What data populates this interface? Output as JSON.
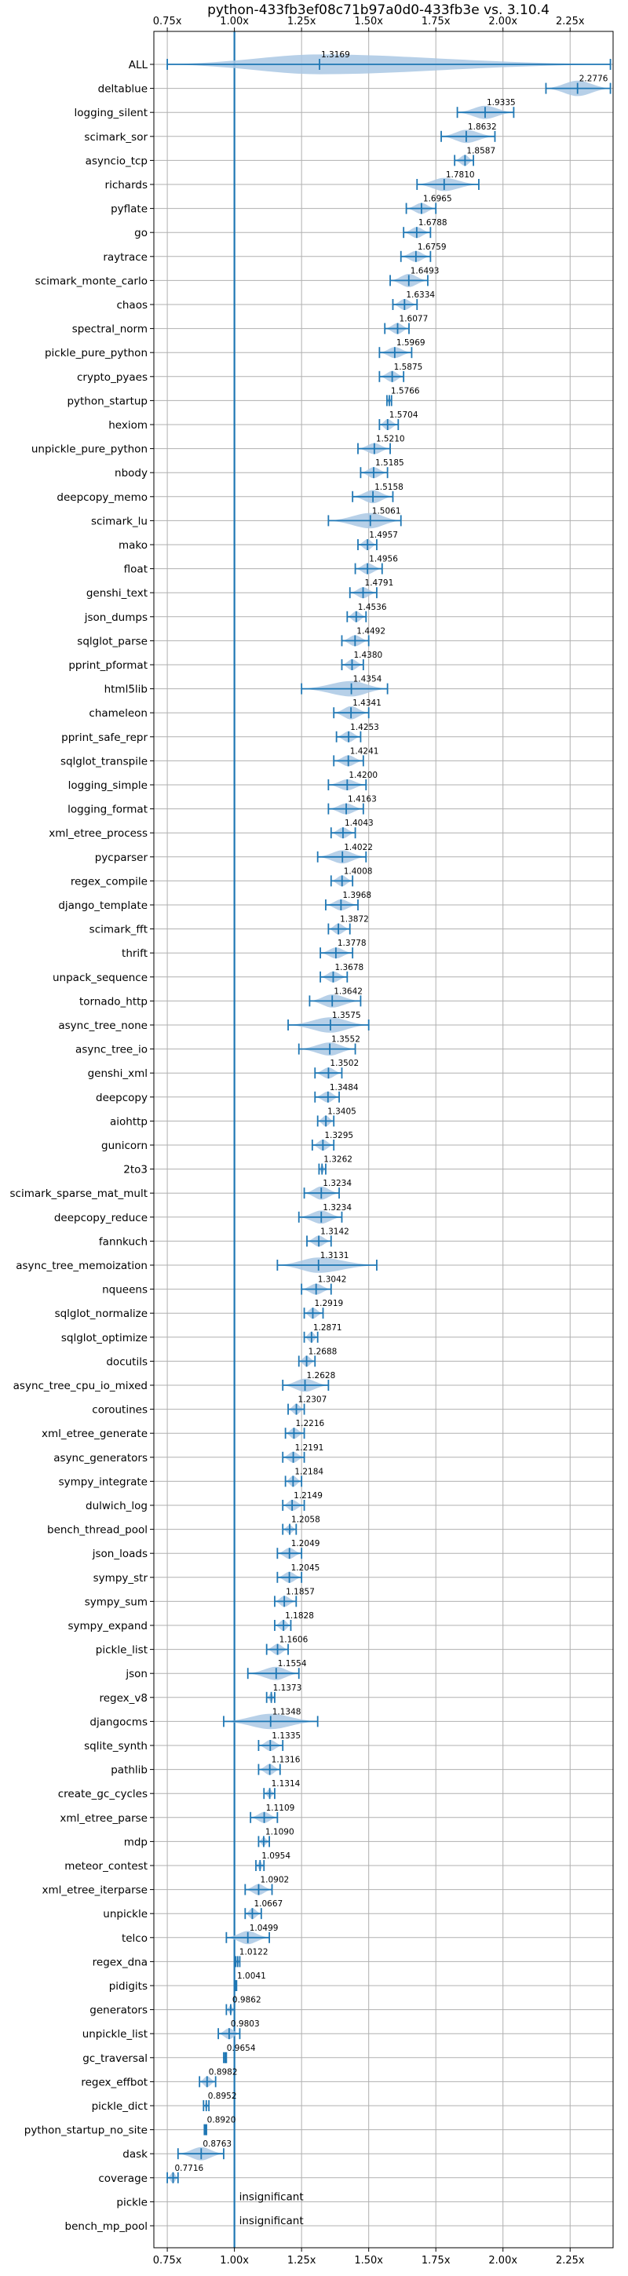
{
  "chart_data": {
    "type": "violin",
    "title": "python-433fb3ef08c71b97a0d0-433fb3e vs. 3.10.4",
    "xlabel": "",
    "ylabel": "",
    "xlim": [
      0.7,
      2.41
    ],
    "xticks": [
      0.75,
      1.0,
      1.25,
      1.5,
      1.75,
      2.0,
      2.25
    ],
    "xtick_labels": [
      "0.75x",
      "1.00x",
      "1.25x",
      "1.50x",
      "1.75x",
      "2.00x",
      "2.25x"
    ],
    "reference_line": 1.0,
    "grid": true,
    "colors": {
      "accent": "#1f77b4",
      "violin": "#aac8e4",
      "grid": "#b0b0b0"
    },
    "insignificant_label": "insignificant",
    "benchmarks": [
      {
        "name": "ALL",
        "value": 1.3169,
        "label": "1.3169",
        "min": 0.75,
        "max": 2.4,
        "width": 0.9
      },
      {
        "name": "deltablue",
        "value": 2.2776,
        "label": "2.2776",
        "min": 2.16,
        "max": 2.4,
        "width": 0.7
      },
      {
        "name": "logging_silent",
        "value": 1.9335,
        "label": "1.9335",
        "min": 1.83,
        "max": 2.04,
        "width": 0.6
      },
      {
        "name": "scimark_sor",
        "value": 1.8632,
        "label": "1.8632",
        "min": 1.77,
        "max": 1.97,
        "width": 0.6
      },
      {
        "name": "asyncio_tcp",
        "value": 1.8587,
        "label": "1.8587",
        "min": 1.82,
        "max": 1.89,
        "width": 0.5
      },
      {
        "name": "richards",
        "value": 1.781,
        "label": "1.7810",
        "min": 1.68,
        "max": 1.91,
        "width": 0.6
      },
      {
        "name": "pyflate",
        "value": 1.6965,
        "label": "1.6965",
        "min": 1.64,
        "max": 1.75,
        "width": 0.5
      },
      {
        "name": "go",
        "value": 1.6788,
        "label": "1.6788",
        "min": 1.63,
        "max": 1.73,
        "width": 0.5
      },
      {
        "name": "raytrace",
        "value": 1.6759,
        "label": "1.6759",
        "min": 1.62,
        "max": 1.73,
        "width": 0.5
      },
      {
        "name": "scimark_monte_carlo",
        "value": 1.6493,
        "label": "1.6493",
        "min": 1.58,
        "max": 1.72,
        "width": 0.6
      },
      {
        "name": "chaos",
        "value": 1.6334,
        "label": "1.6334",
        "min": 1.59,
        "max": 1.68,
        "width": 0.5
      },
      {
        "name": "spectral_norm",
        "value": 1.6077,
        "label": "1.6077",
        "min": 1.56,
        "max": 1.65,
        "width": 0.5
      },
      {
        "name": "pickle_pure_python",
        "value": 1.5969,
        "label": "1.5969",
        "min": 1.54,
        "max": 1.66,
        "width": 0.5
      },
      {
        "name": "crypto_pyaes",
        "value": 1.5875,
        "label": "1.5875",
        "min": 1.54,
        "max": 1.63,
        "width": 0.5
      },
      {
        "name": "python_startup",
        "value": 1.5766,
        "label": "1.5766",
        "min": 1.568,
        "max": 1.585,
        "width": 0.4
      },
      {
        "name": "hexiom",
        "value": 1.5704,
        "label": "1.5704",
        "min": 1.54,
        "max": 1.61,
        "width": 0.5
      },
      {
        "name": "unpickle_pure_python",
        "value": 1.521,
        "label": "1.5210",
        "min": 1.46,
        "max": 1.58,
        "width": 0.5
      },
      {
        "name": "nbody",
        "value": 1.5185,
        "label": "1.5185",
        "min": 1.47,
        "max": 1.57,
        "width": 0.5
      },
      {
        "name": "deepcopy_memo",
        "value": 1.5158,
        "label": "1.5158",
        "min": 1.44,
        "max": 1.59,
        "width": 0.6
      },
      {
        "name": "scimark_lu",
        "value": 1.5061,
        "label": "1.5061",
        "min": 1.35,
        "max": 1.62,
        "width": 0.7
      },
      {
        "name": "mako",
        "value": 1.4957,
        "label": "1.4957",
        "min": 1.46,
        "max": 1.53,
        "width": 0.5
      },
      {
        "name": "float",
        "value": 1.4956,
        "label": "1.4956",
        "min": 1.45,
        "max": 1.55,
        "width": 0.5
      },
      {
        "name": "genshi_text",
        "value": 1.4791,
        "label": "1.4791",
        "min": 1.43,
        "max": 1.53,
        "width": 0.5
      },
      {
        "name": "json_dumps",
        "value": 1.4536,
        "label": "1.4536",
        "min": 1.42,
        "max": 1.49,
        "width": 0.5
      },
      {
        "name": "sqlglot_parse",
        "value": 1.4492,
        "label": "1.4492",
        "min": 1.4,
        "max": 1.5,
        "width": 0.5
      },
      {
        "name": "pprint_pformat",
        "value": 1.438,
        "label": "1.4380",
        "min": 1.4,
        "max": 1.48,
        "width": 0.5
      },
      {
        "name": "html5lib",
        "value": 1.4354,
        "label": "1.4354",
        "min": 1.25,
        "max": 1.57,
        "width": 0.7
      },
      {
        "name": "chameleon",
        "value": 1.4341,
        "label": "1.4341",
        "min": 1.37,
        "max": 1.5,
        "width": 0.6
      },
      {
        "name": "pprint_safe_repr",
        "value": 1.4253,
        "label": "1.4253",
        "min": 1.38,
        "max": 1.47,
        "width": 0.5
      },
      {
        "name": "sqlglot_transpile",
        "value": 1.4241,
        "label": "1.4241",
        "min": 1.37,
        "max": 1.48,
        "width": 0.5
      },
      {
        "name": "logging_simple",
        "value": 1.42,
        "label": "1.4200",
        "min": 1.35,
        "max": 1.49,
        "width": 0.5
      },
      {
        "name": "logging_format",
        "value": 1.4163,
        "label": "1.4163",
        "min": 1.35,
        "max": 1.48,
        "width": 0.5
      },
      {
        "name": "xml_etree_process",
        "value": 1.4043,
        "label": "1.4043",
        "min": 1.36,
        "max": 1.45,
        "width": 0.5
      },
      {
        "name": "pycparser",
        "value": 1.4022,
        "label": "1.4022",
        "min": 1.31,
        "max": 1.49,
        "width": 0.6
      },
      {
        "name": "regex_compile",
        "value": 1.4008,
        "label": "1.4008",
        "min": 1.36,
        "max": 1.44,
        "width": 0.5
      },
      {
        "name": "django_template",
        "value": 1.3968,
        "label": "1.3968",
        "min": 1.34,
        "max": 1.46,
        "width": 0.5
      },
      {
        "name": "scimark_fft",
        "value": 1.3872,
        "label": "1.3872",
        "min": 1.35,
        "max": 1.43,
        "width": 0.5
      },
      {
        "name": "thrift",
        "value": 1.3778,
        "label": "1.3778",
        "min": 1.32,
        "max": 1.44,
        "width": 0.5
      },
      {
        "name": "unpack_sequence",
        "value": 1.3678,
        "label": "1.3678",
        "min": 1.32,
        "max": 1.42,
        "width": 0.5
      },
      {
        "name": "tornado_http",
        "value": 1.3642,
        "label": "1.3642",
        "min": 1.28,
        "max": 1.47,
        "width": 0.6
      },
      {
        "name": "async_tree_none",
        "value": 1.3575,
        "label": "1.3575",
        "min": 1.2,
        "max": 1.5,
        "width": 0.7
      },
      {
        "name": "async_tree_io",
        "value": 1.3552,
        "label": "1.3552",
        "min": 1.24,
        "max": 1.45,
        "width": 0.6
      },
      {
        "name": "genshi_xml",
        "value": 1.3502,
        "label": "1.3502",
        "min": 1.3,
        "max": 1.4,
        "width": 0.5
      },
      {
        "name": "deepcopy",
        "value": 1.3484,
        "label": "1.3484",
        "min": 1.3,
        "max": 1.39,
        "width": 0.5
      },
      {
        "name": "aiohttp",
        "value": 1.3405,
        "label": "1.3405",
        "min": 1.31,
        "max": 1.37,
        "width": 0.5
      },
      {
        "name": "gunicorn",
        "value": 1.3295,
        "label": "1.3295",
        "min": 1.29,
        "max": 1.37,
        "width": 0.5
      },
      {
        "name": "2to3",
        "value": 1.3262,
        "label": "1.3262",
        "min": 1.315,
        "max": 1.34,
        "width": 0.4
      },
      {
        "name": "scimark_sparse_mat_mult",
        "value": 1.3234,
        "label": "1.3234",
        "min": 1.26,
        "max": 1.39,
        "width": 0.6
      },
      {
        "name": "deepcopy_reduce",
        "value": 1.3234,
        "label": "1.3234",
        "min": 1.24,
        "max": 1.4,
        "width": 0.6
      },
      {
        "name": "fannkuch",
        "value": 1.3142,
        "label": "1.3142",
        "min": 1.27,
        "max": 1.36,
        "width": 0.5
      },
      {
        "name": "async_tree_memoization",
        "value": 1.3131,
        "label": "1.3131",
        "min": 1.16,
        "max": 1.53,
        "width": 0.7
      },
      {
        "name": "nqueens",
        "value": 1.3042,
        "label": "1.3042",
        "min": 1.25,
        "max": 1.36,
        "width": 0.5
      },
      {
        "name": "sqlglot_normalize",
        "value": 1.2919,
        "label": "1.2919",
        "min": 1.26,
        "max": 1.33,
        "width": 0.5
      },
      {
        "name": "sqlglot_optimize",
        "value": 1.2871,
        "label": "1.2871",
        "min": 1.26,
        "max": 1.31,
        "width": 0.5
      },
      {
        "name": "docutils",
        "value": 1.2688,
        "label": "1.2688",
        "min": 1.24,
        "max": 1.3,
        "width": 0.5
      },
      {
        "name": "async_tree_cpu_io_mixed",
        "value": 1.2628,
        "label": "1.2628",
        "min": 1.18,
        "max": 1.35,
        "width": 0.6
      },
      {
        "name": "coroutines",
        "value": 1.2307,
        "label": "1.2307",
        "min": 1.2,
        "max": 1.26,
        "width": 0.5
      },
      {
        "name": "xml_etree_generate",
        "value": 1.2216,
        "label": "1.2216",
        "min": 1.19,
        "max": 1.26,
        "width": 0.5
      },
      {
        "name": "async_generators",
        "value": 1.2191,
        "label": "1.2191",
        "min": 1.18,
        "max": 1.26,
        "width": 0.5
      },
      {
        "name": "sympy_integrate",
        "value": 1.2184,
        "label": "1.2184",
        "min": 1.19,
        "max": 1.25,
        "width": 0.5
      },
      {
        "name": "dulwich_log",
        "value": 1.2149,
        "label": "1.2149",
        "min": 1.18,
        "max": 1.26,
        "width": 0.5
      },
      {
        "name": "bench_thread_pool",
        "value": 1.2058,
        "label": "1.2058",
        "min": 1.18,
        "max": 1.23,
        "width": 0.4
      },
      {
        "name": "json_loads",
        "value": 1.2049,
        "label": "1.2049",
        "min": 1.16,
        "max": 1.25,
        "width": 0.5
      },
      {
        "name": "sympy_str",
        "value": 1.2045,
        "label": "1.2045",
        "min": 1.16,
        "max": 1.25,
        "width": 0.5
      },
      {
        "name": "sympy_sum",
        "value": 1.1857,
        "label": "1.1857",
        "min": 1.15,
        "max": 1.23,
        "width": 0.5
      },
      {
        "name": "sympy_expand",
        "value": 1.1828,
        "label": "1.1828",
        "min": 1.15,
        "max": 1.21,
        "width": 0.5
      },
      {
        "name": "pickle_list",
        "value": 1.1606,
        "label": "1.1606",
        "min": 1.12,
        "max": 1.2,
        "width": 0.5
      },
      {
        "name": "json",
        "value": 1.1554,
        "label": "1.1554",
        "min": 1.05,
        "max": 1.24,
        "width": 0.6
      },
      {
        "name": "regex_v8",
        "value": 1.1373,
        "label": "1.1373",
        "min": 1.12,
        "max": 1.15,
        "width": 0.4
      },
      {
        "name": "djangocms",
        "value": 1.1348,
        "label": "1.1348",
        "min": 0.96,
        "max": 1.31,
        "width": 0.7
      },
      {
        "name": "sqlite_synth",
        "value": 1.1335,
        "label": "1.1335",
        "min": 1.09,
        "max": 1.18,
        "width": 0.5
      },
      {
        "name": "pathlib",
        "value": 1.1316,
        "label": "1.1316",
        "min": 1.09,
        "max": 1.17,
        "width": 0.5
      },
      {
        "name": "create_gc_cycles",
        "value": 1.1314,
        "label": "1.1314",
        "min": 1.11,
        "max": 1.15,
        "width": 0.4
      },
      {
        "name": "xml_etree_parse",
        "value": 1.1109,
        "label": "1.1109",
        "min": 1.06,
        "max": 1.16,
        "width": 0.5
      },
      {
        "name": "mdp",
        "value": 1.109,
        "label": "1.1090",
        "min": 1.09,
        "max": 1.13,
        "width": 0.4
      },
      {
        "name": "meteor_contest",
        "value": 1.0954,
        "label": "1.0954",
        "min": 1.08,
        "max": 1.11,
        "width": 0.4
      },
      {
        "name": "xml_etree_iterparse",
        "value": 1.0902,
        "label": "1.0902",
        "min": 1.04,
        "max": 1.14,
        "width": 0.5
      },
      {
        "name": "unpickle",
        "value": 1.0667,
        "label": "1.0667",
        "min": 1.04,
        "max": 1.1,
        "width": 0.5
      },
      {
        "name": "telco",
        "value": 1.0499,
        "label": "1.0499",
        "min": 0.97,
        "max": 1.13,
        "width": 0.6
      },
      {
        "name": "regex_dna",
        "value": 1.0122,
        "label": "1.0122",
        "min": 1.005,
        "max": 1.02,
        "width": 0.3
      },
      {
        "name": "pidigits",
        "value": 1.0041,
        "label": "1.0041",
        "min": 1.0,
        "max": 1.008,
        "width": 0.3
      },
      {
        "name": "generators",
        "value": 0.9862,
        "label": "0.9862",
        "min": 0.97,
        "max": 1.0,
        "width": 0.4
      },
      {
        "name": "unpickle_list",
        "value": 0.9803,
        "label": "0.9803",
        "min": 0.94,
        "max": 1.02,
        "width": 0.5
      },
      {
        "name": "gc_traversal",
        "value": 0.9654,
        "label": "0.9654",
        "min": 0.96,
        "max": 0.97,
        "width": 0.3
      },
      {
        "name": "regex_effbot",
        "value": 0.8982,
        "label": "0.8982",
        "min": 0.87,
        "max": 0.93,
        "width": 0.5
      },
      {
        "name": "pickle_dict",
        "value": 0.8952,
        "label": "0.8952",
        "min": 0.885,
        "max": 0.905,
        "width": 0.3
      },
      {
        "name": "python_startup_no_site",
        "value": 0.892,
        "label": "0.8920",
        "min": 0.888,
        "max": 0.896,
        "width": 0.2
      },
      {
        "name": "dask",
        "value": 0.8763,
        "label": "0.8763",
        "min": 0.79,
        "max": 0.96,
        "width": 0.6
      },
      {
        "name": "coverage",
        "value": 0.7716,
        "label": "0.7716",
        "min": 0.75,
        "max": 0.79,
        "width": 0.5
      },
      {
        "name": "pickle",
        "value": null,
        "label": "insignificant"
      },
      {
        "name": "bench_mp_pool",
        "value": null,
        "label": "insignificant"
      }
    ]
  }
}
